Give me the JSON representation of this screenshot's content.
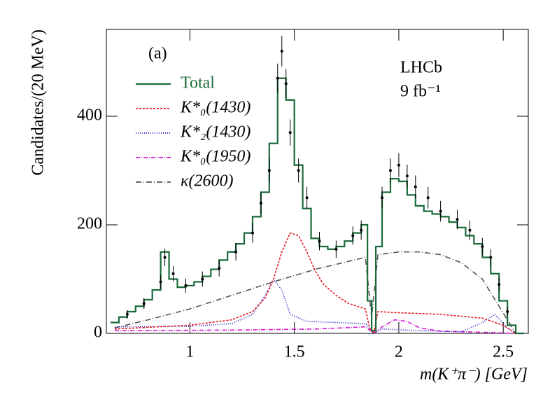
{
  "chart_data": {
    "type": "line",
    "annotations": [
      "(a)",
      "LHCb",
      "9 fb⁻¹"
    ],
    "x_label": "m(K⁺π⁻) [GeV]",
    "y_label": "Candidates/(20 MeV)",
    "xlim": [
      0.6,
      2.62
    ],
    "ylim": [
      0,
      560
    ],
    "xticks": [
      1,
      1.5,
      2,
      2.5
    ],
    "yticks": [
      0,
      200,
      400
    ],
    "legend": "upper left",
    "series": [
      {
        "name": "Total",
        "color": "#1b6b3a",
        "dash": "solid",
        "step": true,
        "x": [
          0.64,
          0.68,
          0.72,
          0.76,
          0.8,
          0.84,
          0.88,
          0.92,
          0.96,
          1.0,
          1.04,
          1.08,
          1.12,
          1.16,
          1.2,
          1.24,
          1.28,
          1.32,
          1.36,
          1.4,
          1.44,
          1.48,
          1.52,
          1.56,
          1.6,
          1.64,
          1.68,
          1.72,
          1.76,
          1.8,
          1.84,
          1.86,
          1.88,
          1.9,
          1.94,
          1.98,
          2.02,
          2.06,
          2.1,
          2.14,
          2.18,
          2.22,
          2.26,
          2.3,
          2.34,
          2.38,
          2.42,
          2.46,
          2.5,
          2.54,
          2.58
        ],
        "values": [
          20,
          30,
          40,
          50,
          62,
          80,
          150,
          100,
          85,
          88,
          95,
          105,
          118,
          135,
          150,
          165,
          185,
          215,
          260,
          350,
          470,
          430,
          310,
          230,
          175,
          160,
          155,
          160,
          170,
          185,
          200,
          60,
          5,
          160,
          260,
          285,
          280,
          255,
          235,
          225,
          220,
          215,
          205,
          195,
          180,
          165,
          140,
          110,
          60,
          15,
          0
        ]
      },
      {
        "name": "K*₀(1430)",
        "color": "#e8161b",
        "dash": "3,2",
        "x": [
          0.64,
          1.0,
          1.2,
          1.3,
          1.36,
          1.4,
          1.44,
          1.48,
          1.52,
          1.56,
          1.6,
          1.64,
          1.7,
          1.76,
          1.84,
          1.86,
          1.88,
          1.9,
          2.0,
          2.2,
          2.4,
          2.5,
          2.56
        ],
        "values": [
          8,
          15,
          25,
          40,
          65,
          100,
          150,
          185,
          180,
          150,
          115,
          90,
          70,
          55,
          45,
          10,
          0,
          40,
          38,
          35,
          28,
          15,
          0
        ]
      },
      {
        "name": "K*₂(1430)",
        "color": "#1a1acc",
        "dash": "1,2",
        "x": [
          0.64,
          1.0,
          1.2,
          1.3,
          1.36,
          1.4,
          1.44,
          1.48,
          1.56,
          1.7,
          1.84,
          1.88,
          1.92,
          2.1,
          2.3,
          2.4,
          2.46,
          2.52,
          2.56
        ],
        "values": [
          12,
          13,
          18,
          35,
          70,
          100,
          80,
          35,
          22,
          20,
          18,
          0,
          8,
          5,
          3,
          20,
          35,
          10,
          0
        ]
      },
      {
        "name": "K*₀(1950)",
        "color": "#d41ad4",
        "dash": "6,2,1,2",
        "x": [
          0.64,
          1.2,
          1.6,
          1.84,
          1.88,
          1.92,
          1.98,
          2.04,
          2.1,
          2.2,
          2.4,
          2.56
        ],
        "values": [
          5,
          6,
          8,
          12,
          0,
          12,
          25,
          22,
          10,
          4,
          2,
          0
        ]
      },
      {
        "name": "κ(2600)",
        "color": "#555555",
        "dash": "8,3,1,3",
        "x": [
          0.64,
          0.8,
          1.0,
          1.2,
          1.4,
          1.6,
          1.84,
          1.87,
          1.9,
          2.0,
          2.1,
          2.2,
          2.3,
          2.4,
          2.48,
          2.56
        ],
        "values": [
          10,
          25,
          45,
          70,
          95,
          118,
          140,
          30,
          145,
          150,
          150,
          145,
          130,
          100,
          50,
          0
        ]
      }
    ],
    "points": {
      "x": [
        0.7,
        0.78,
        0.86,
        0.88,
        0.92,
        0.98,
        1.06,
        1.14,
        1.22,
        1.3,
        1.34,
        1.38,
        1.42,
        1.44,
        1.46,
        1.48,
        1.52,
        1.56,
        1.62,
        1.7,
        1.78,
        1.82,
        1.92,
        1.96,
        2.0,
        2.04,
        2.08,
        2.14,
        2.2,
        2.28,
        2.34,
        2.4,
        2.44,
        2.48,
        2.52
      ],
      "values": [
        35,
        55,
        95,
        140,
        110,
        88,
        100,
        120,
        150,
        185,
        240,
        300,
        470,
        520,
        460,
        370,
        300,
        250,
        170,
        155,
        180,
        190,
        250,
        300,
        310,
        290,
        270,
        250,
        225,
        210,
        190,
        160,
        140,
        90,
        40
      ],
      "errors": [
        8,
        10,
        13,
        16,
        14,
        13,
        14,
        15,
        16,
        18,
        20,
        22,
        27,
        28,
        27,
        24,
        22,
        20,
        17,
        16,
        17,
        18,
        20,
        22,
        22,
        21,
        21,
        20,
        19,
        18,
        18,
        16,
        15,
        12,
        8
      ]
    }
  }
}
